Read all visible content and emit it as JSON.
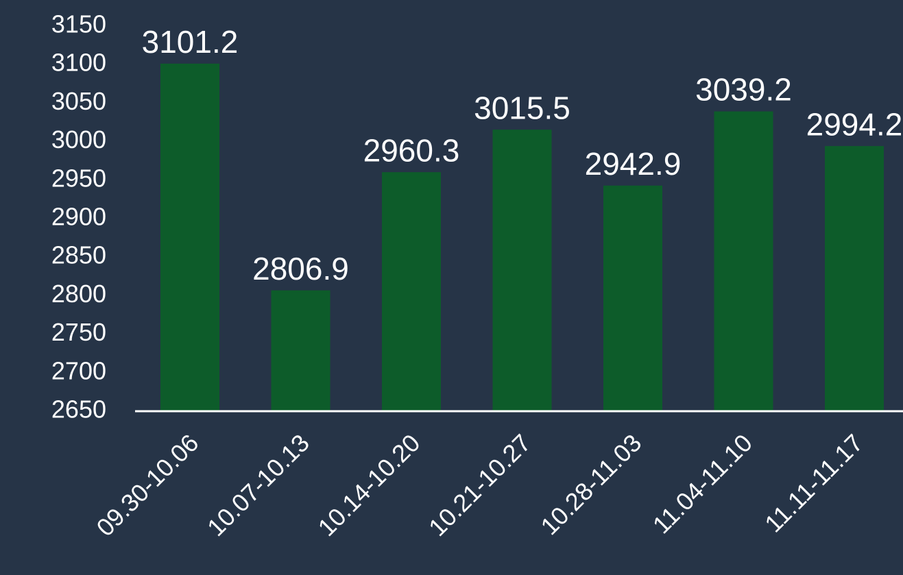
{
  "chart_data": {
    "type": "bar",
    "categories": [
      "09.30-10.06",
      "10.07-10.13",
      "10.14-10.20",
      "10.21-10.27",
      "10.28-11.03",
      "11.04-11.10",
      "11.11-11.17"
    ],
    "values": [
      3101.2,
      2806.9,
      2960.3,
      3015.5,
      2942.9,
      3039.2,
      2994.2
    ],
    "color": "#0d5c2a",
    "ylim": [
      2650,
      3150
    ],
    "yticks": [
      2650,
      2700,
      2750,
      2800,
      2850,
      2900,
      2950,
      3000,
      3050,
      3100,
      3150
    ],
    "grid": false
  }
}
